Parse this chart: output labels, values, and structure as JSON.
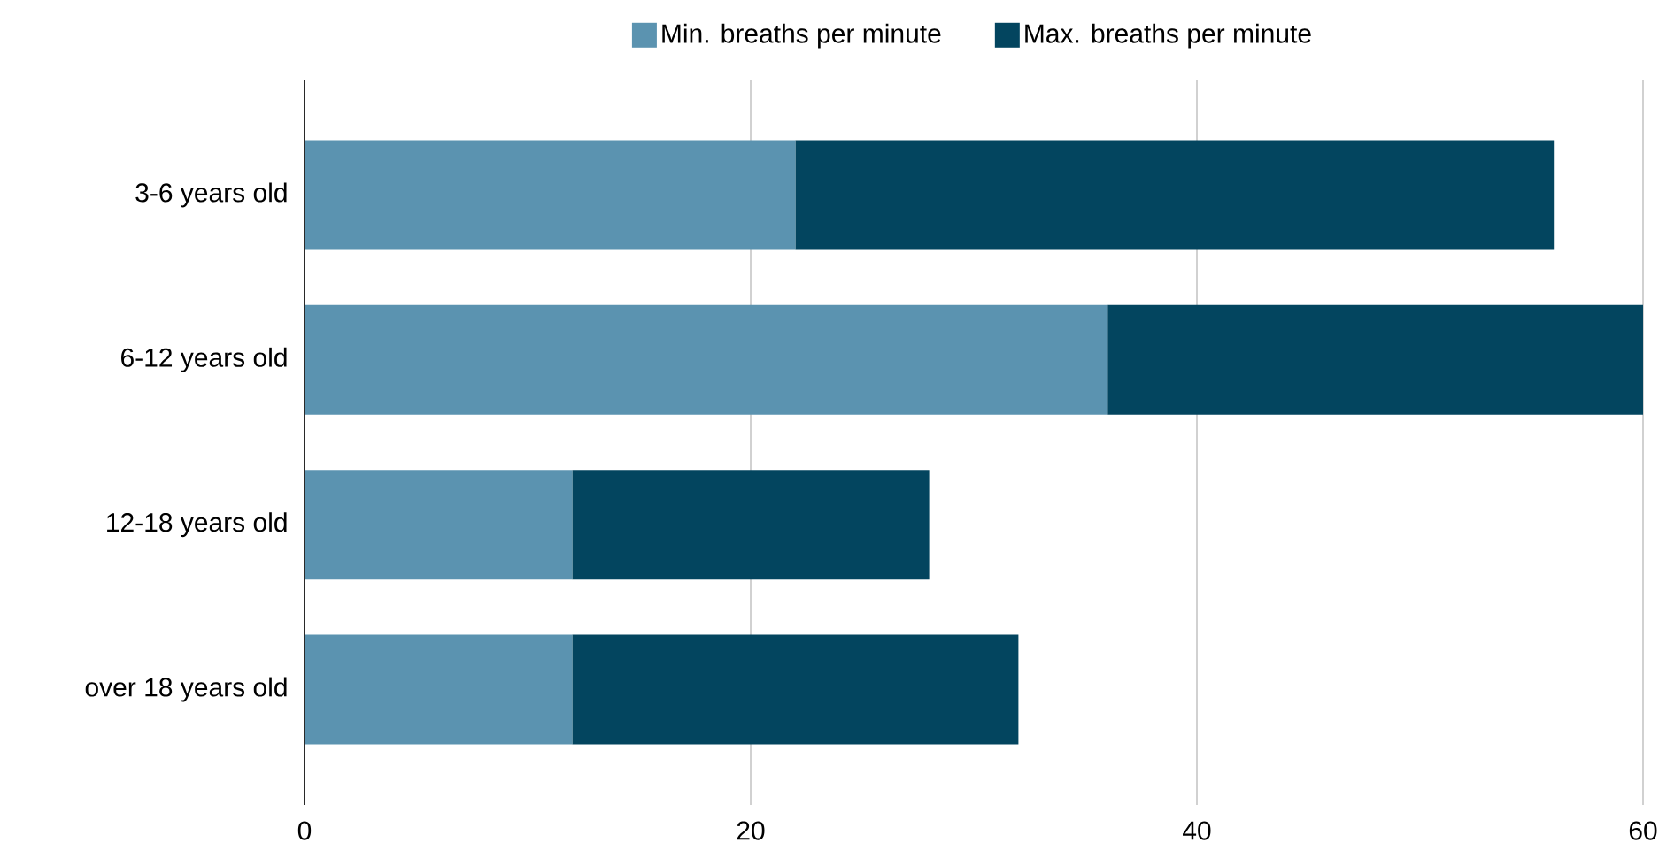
{
  "chart_data": {
    "type": "bar",
    "orientation": "horizontal",
    "stacked": true,
    "categories": [
      "3-6 years old",
      "6-12 years old",
      "12-18 years old",
      "over 18 years old"
    ],
    "series": [
      {
        "name": "Min. breaths per minute",
        "color": "#5b93b0",
        "values": [
          22,
          36,
          12,
          12
        ]
      },
      {
        "name": "Max. breaths per minute",
        "color": "#03455f",
        "values": [
          34,
          24,
          16,
          20
        ]
      }
    ],
    "xlim": [
      0,
      60
    ],
    "xticks": [
      0,
      20,
      40,
      60
    ],
    "grid": "x",
    "legend": "top"
  }
}
